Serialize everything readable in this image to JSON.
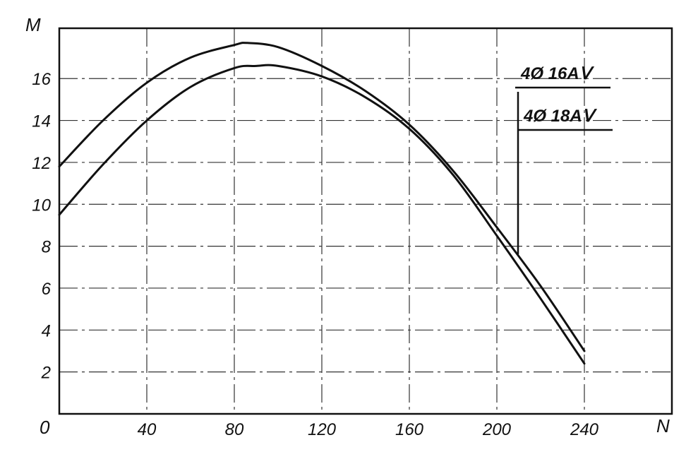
{
  "chart_data": {
    "type": "line",
    "x_axis_label": "N",
    "y_axis_label": "M",
    "origin_label": "0",
    "x_ticks": [
      40,
      80,
      120,
      160,
      200,
      240
    ],
    "y_ticks": [
      2,
      4,
      6,
      8,
      10,
      12,
      14,
      16
    ],
    "xlim": [
      0,
      280
    ],
    "ylim": [
      0,
      18.4
    ],
    "grid": true,
    "legend_position": "top-right",
    "legend": [
      "4Ø 16AⅤ",
      "4Ø 18AⅤ"
    ],
    "series": [
      {
        "x": [
          0,
          20,
          40,
          60,
          80,
          86,
          100,
          120,
          140,
          160,
          180,
          200,
          220,
          240
        ],
        "y": [
          11.8,
          14.0,
          15.8,
          17.0,
          17.6,
          17.7,
          17.5,
          16.6,
          15.4,
          13.8,
          11.6,
          8.9,
          6.1,
          3.0
        ]
      },
      {
        "x": [
          0,
          20,
          40,
          60,
          80,
          90,
          100,
          120,
          140,
          160,
          180,
          200,
          220,
          240
        ],
        "y": [
          9.5,
          11.9,
          14.0,
          15.6,
          16.5,
          16.6,
          16.6,
          16.1,
          15.1,
          13.6,
          11.4,
          8.5,
          5.5,
          2.4
        ]
      }
    ]
  }
}
